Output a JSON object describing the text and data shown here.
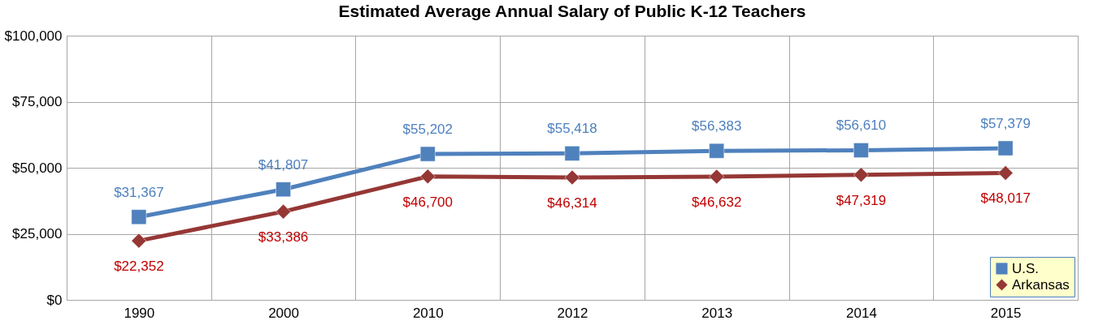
{
  "chart_data": {
    "type": "line",
    "title": "Estimated Average Annual Salary of Public K-12 Teachers",
    "categories": [
      "1990",
      "2000",
      "2010",
      "2012",
      "2013",
      "2014",
      "2015"
    ],
    "series": [
      {
        "name": "U.S.",
        "color": "#4f81bd",
        "marker": "square",
        "values": [
          31367,
          41807,
          55202,
          55418,
          56383,
          56610,
          57379
        ],
        "value_labels": [
          "$31,367",
          "$41,807",
          "$55,202",
          "$55,418",
          "$56,383",
          "$56,610",
          "$57,379"
        ]
      },
      {
        "name": "Arkansas",
        "color": "#953735",
        "marker": "diamond",
        "values": [
          22352,
          33386,
          46700,
          46314,
          46632,
          47319,
          48017
        ],
        "value_labels": [
          "$22,352",
          "$33,386",
          "$46,700",
          "$46,314",
          "$46,632",
          "$47,319",
          "$48,017"
        ]
      }
    ],
    "ylim": [
      0,
      100000
    ],
    "yticks": [
      {
        "value": 0,
        "label": "$0"
      },
      {
        "value": 25000,
        "label": "$25,000"
      },
      {
        "value": 50000,
        "label": "$50,000"
      },
      {
        "value": 75000,
        "label": "$75,000"
      },
      {
        "value": 100000,
        "label": "$100,000"
      }
    ],
    "grid": true,
    "legend": "bottom right"
  }
}
